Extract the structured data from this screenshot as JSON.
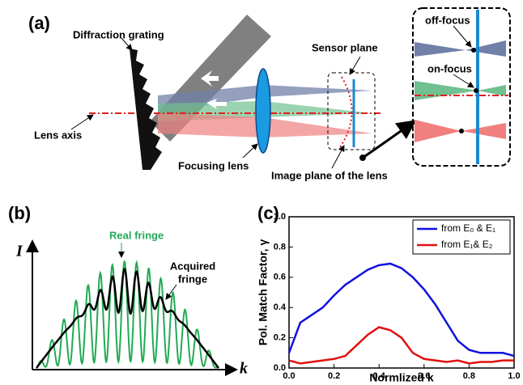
{
  "panel_a": {
    "label": "(a)",
    "grating": "Diffraction grating",
    "axis": "Lens axis",
    "lens": "Focusing lens",
    "sensor": "Sensor plane",
    "image_plane": "Image plane of the lens",
    "off_focus": "off-focus",
    "on_focus": "on-focus"
  },
  "panel_b": {
    "label": "(b)",
    "y_axis": "I",
    "x_axis": "k",
    "real": "Real fringe",
    "acquired": [
      "Acquired",
      "fringe"
    ]
  },
  "chart_data": {
    "type": "line",
    "panel_label": "(c)",
    "x_label": "Normlized k",
    "y_label": "Pol. Match Factor, γ",
    "x": [
      0,
      0.05,
      0.1,
      0.15,
      0.2,
      0.25,
      0.3,
      0.35,
      0.4,
      0.45,
      0.5,
      0.55,
      0.6,
      0.65,
      0.7,
      0.75,
      0.8,
      0.85,
      0.9,
      0.95,
      1.0
    ],
    "series": [
      {
        "name": "from E₀ & E₁",
        "color": "#1010e0",
        "values": [
          0.1,
          0.3,
          0.35,
          0.4,
          0.48,
          0.55,
          0.6,
          0.65,
          0.68,
          0.69,
          0.66,
          0.6,
          0.52,
          0.42,
          0.3,
          0.18,
          0.12,
          0.1,
          0.1,
          0.1,
          0.08
        ]
      },
      {
        "name": "from E₁& E₂",
        "color": "#e01010",
        "values": [
          0.05,
          0.03,
          0.04,
          0.05,
          0.06,
          0.08,
          0.15,
          0.22,
          0.27,
          0.25,
          0.2,
          0.1,
          0.06,
          0.05,
          0.04,
          0.05,
          0.03,
          0.04,
          0.04,
          0.05,
          0.05
        ]
      }
    ],
    "xlim": [
      0,
      1.0
    ],
    "ylim": [
      0,
      1.0
    ],
    "xticks": [
      {
        "value": 0,
        "label": "0.0"
      },
      0.2,
      0.4,
      0.6,
      0.8,
      {
        "value": 1.0,
        "label": "1.0"
      }
    ],
    "yticks": [
      {
        "value": 0,
        "label": "0.0"
      },
      0.2,
      0.4,
      0.6,
      0.8,
      {
        "value": 1.0,
        "label": "1.0"
      }
    ],
    "legend": "upper right"
  }
}
